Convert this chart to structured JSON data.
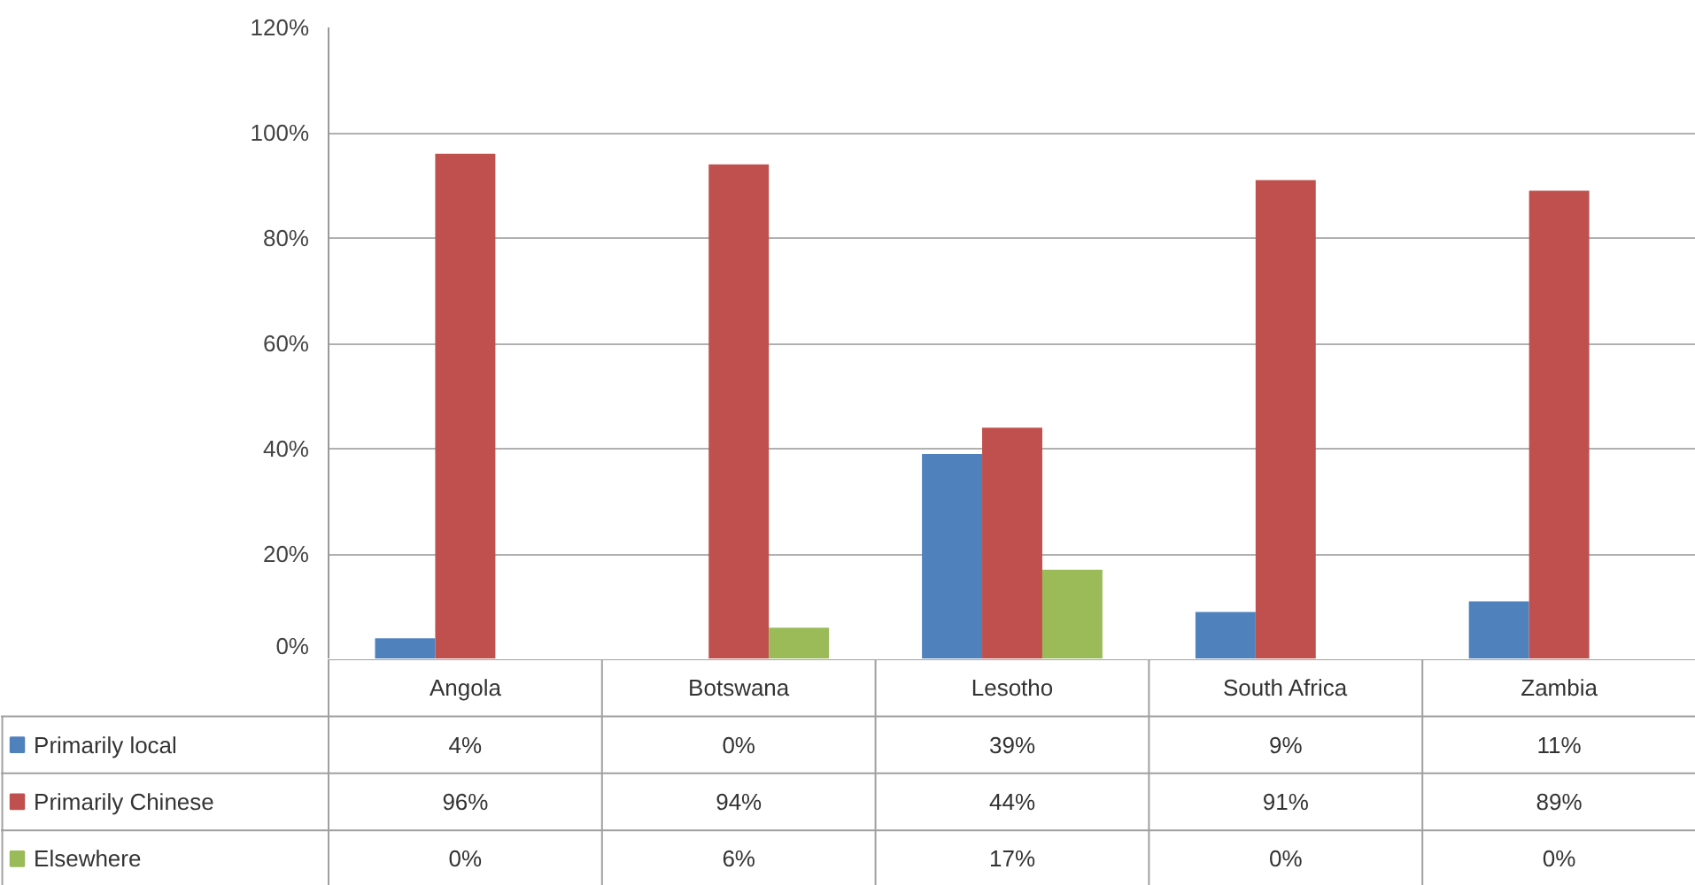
{
  "chart_data": {
    "type": "bar",
    "categories": [
      "Angola",
      "Botswana",
      "Lesotho",
      "South Africa",
      "Zambia"
    ],
    "series": [
      {
        "name": "Primarily local",
        "color": "#4f81bd",
        "values": [
          4,
          0,
          39,
          9,
          11
        ],
        "value_labels": [
          "4%",
          "0%",
          "39%",
          "9%",
          "11%"
        ]
      },
      {
        "name": "Primarily Chinese",
        "color": "#c0504d",
        "values": [
          96,
          94,
          44,
          91,
          89
        ],
        "value_labels": [
          "96%",
          "94%",
          "44%",
          "91%",
          "89%"
        ]
      },
      {
        "name": "Elsewhere",
        "color": "#9bbb59",
        "values": [
          0,
          6,
          17,
          0,
          0
        ],
        "value_labels": [
          "0%",
          "6%",
          "17%",
          "0%",
          "0%"
        ]
      }
    ],
    "ylim": [
      0,
      120
    ],
    "yticks": [
      {
        "value": 0,
        "label": "0%"
      },
      {
        "value": 20,
        "label": "20%"
      },
      {
        "value": 40,
        "label": "40%"
      },
      {
        "value": 60,
        "label": "60%"
      },
      {
        "value": 80,
        "label": "80%"
      },
      {
        "value": 100,
        "label": "100%"
      },
      {
        "value": 120,
        "label": "120%"
      }
    ],
    "grid": "y",
    "legend": "bottom"
  }
}
